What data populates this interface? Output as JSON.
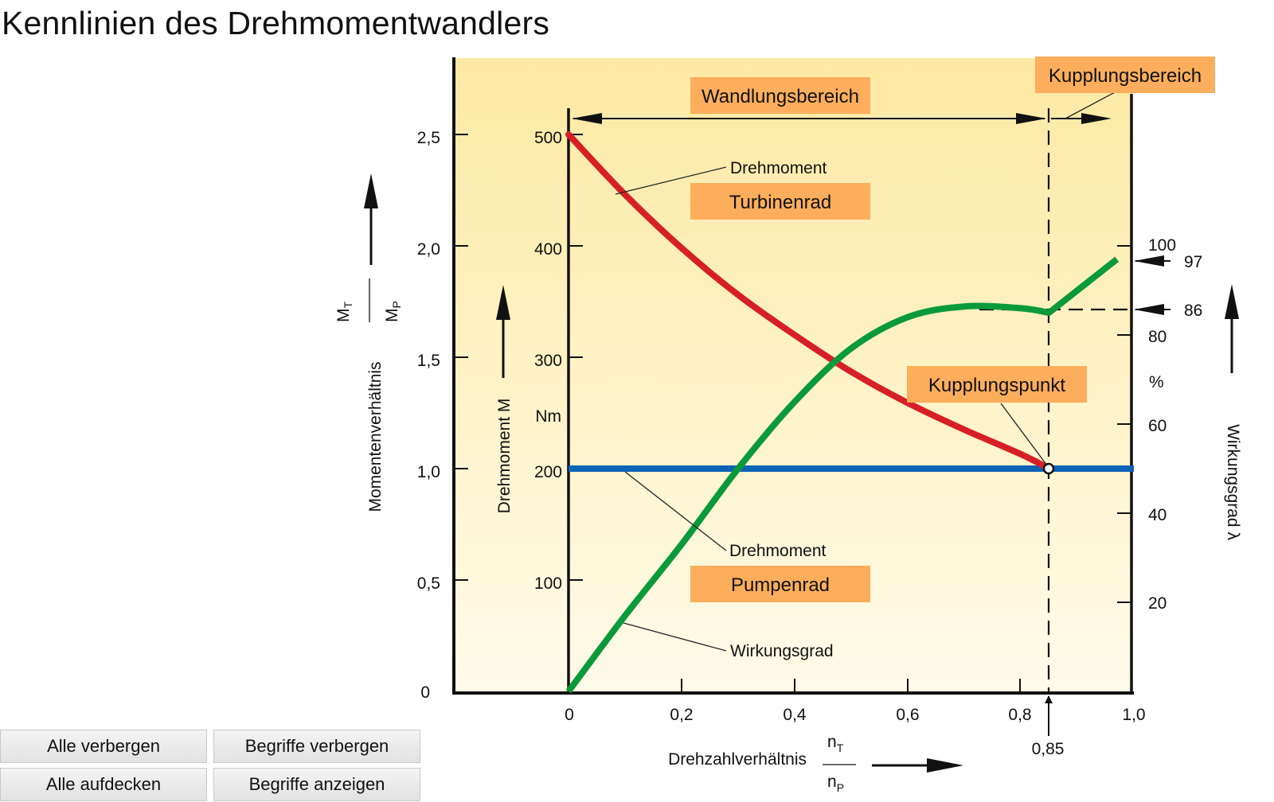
{
  "page": {
    "title": "Kennlinien des Drehmomentwandlers"
  },
  "diagram": {
    "ratio_axis": {
      "label": "Momentenverhältnis",
      "fraction_num": "M",
      "fraction_num_sub": "T",
      "fraction_den": "M",
      "fraction_den_sub": "P",
      "ticks": [
        "0",
        "0,5",
        "1,0",
        "1,5",
        "2,0",
        "2,5"
      ]
    },
    "torque_axis": {
      "label": "Drehmoment M",
      "unit": "Nm",
      "ticks": [
        "100",
        "200",
        "300",
        "400",
        "500"
      ]
    },
    "efficiency_axis": {
      "label": "Wirkungsgrad λ",
      "unit": "%",
      "ticks": [
        "20",
        "40",
        "60",
        "80",
        "100"
      ],
      "marker_97": "97",
      "marker_86": "86"
    },
    "x_axis": {
      "label": "Drehzahlverhältnis",
      "fraction_num": "n",
      "fraction_num_sub": "T",
      "fraction_den": "n",
      "fraction_den_sub": "P",
      "ticks": [
        "0",
        "0,2",
        "0,4",
        "0,6",
        "0,8",
        "1,0"
      ],
      "coupling_value": "0,85"
    },
    "boxes": {
      "wandlungsbereich": "Wandlungsbereich",
      "kupplungsbereich": "Kupplungsbereich",
      "turbinenrad": "Turbinenrad",
      "pumpenrad": "Pumpenrad",
      "kupplungspunkt": "Kupplungspunkt"
    },
    "annotations": {
      "drehmoment_turbine": "Drehmoment",
      "drehmoment_pumpe": "Drehmoment",
      "wirkungsgrad": "Wirkungsgrad"
    },
    "colors": {
      "background_top": "#fde9a3",
      "background_bottom": "#fffbe9",
      "turbine_curve": "#d71f26",
      "pump_curve": "#0d63b5",
      "efficiency_curve": "#0a9a3b",
      "label_box": "#fdae5c"
    },
    "curves": {
      "turbine_torque_Nm": [
        [
          0,
          500
        ],
        [
          0.1,
          446
        ],
        [
          0.2,
          398
        ],
        [
          0.3,
          356
        ],
        [
          0.4,
          320
        ],
        [
          0.5,
          287
        ],
        [
          0.6,
          259
        ],
        [
          0.7,
          235
        ],
        [
          0.8,
          213
        ],
        [
          0.85,
          200
        ]
      ],
      "pump_torque_Nm": [
        [
          0,
          200
        ],
        [
          1.0,
          200
        ]
      ],
      "efficiency_percent": [
        [
          0,
          0
        ],
        [
          0.1,
          17
        ],
        [
          0.2,
          33
        ],
        [
          0.3,
          50
        ],
        [
          0.4,
          65
        ],
        [
          0.5,
          77
        ],
        [
          0.6,
          84
        ],
        [
          0.7,
          86.4
        ],
        [
          0.8,
          86
        ],
        [
          0.85,
          85
        ],
        [
          0.97,
          97
        ]
      ]
    }
  },
  "buttons": {
    "hide_all": "Alle verbergen",
    "hide_terms": "Begriffe verbergen",
    "reveal_all": "Alle aufdecken",
    "show_terms": "Begriffe anzeigen"
  }
}
